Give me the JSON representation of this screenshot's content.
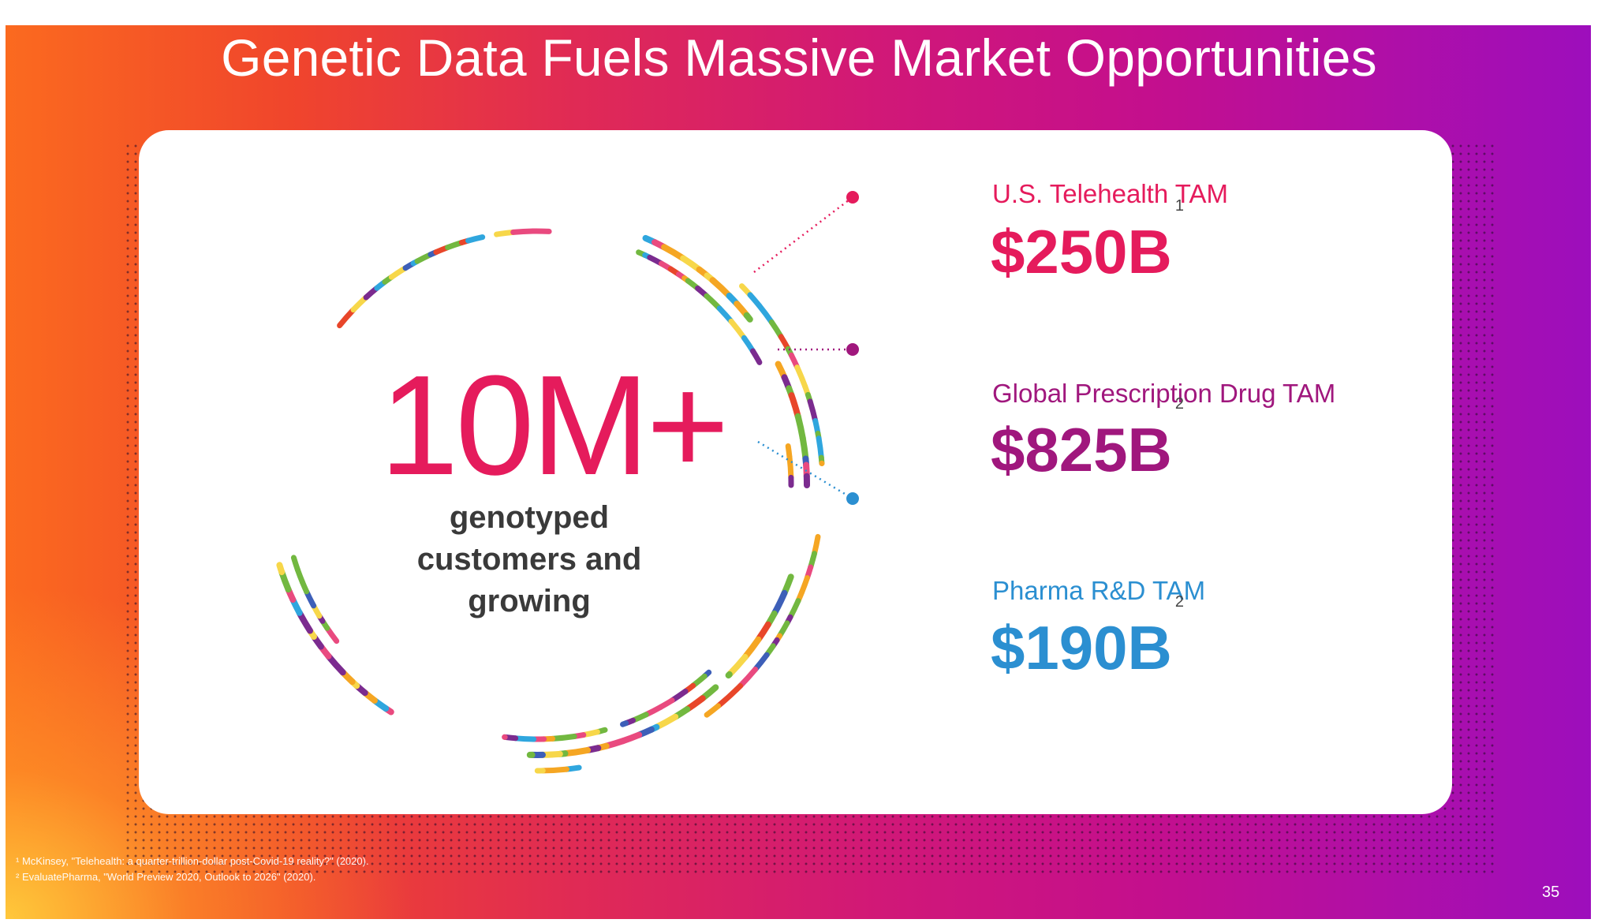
{
  "slide": {
    "title": "Genetic Data Fuels Massive Market Opportunities",
    "page_number": "35"
  },
  "hero": {
    "value": "10M+",
    "label": "genotyped customers and growing"
  },
  "tams": [
    {
      "label": "U.S. Telehealth TAM",
      "value": "$250B",
      "footnote_ref": "1",
      "color": "#e51b5c"
    },
    {
      "label": "Global Prescription Drug TAM",
      "value": "$825B",
      "footnote_ref": "2",
      "color": "#a0177d"
    },
    {
      "label": "Pharma R&D TAM",
      "value": "$190B",
      "footnote_ref": "2",
      "color": "#2b8fd1"
    }
  ],
  "footnotes": [
    "¹ McKinsey, \"Telehealth: a quarter-trillion-dollar post-Covid-19 reality?\" (2020).",
    "² EvaluatePharma, \"World Preview 2020, Outlook to 2026\" (2020)."
  ],
  "colors": {
    "gradient_left": "#fb6a1f",
    "gradient_mid": "#d11877",
    "gradient_right": "#9d0ebc",
    "ring_palette": [
      "#7b2b8f",
      "#e94a7f",
      "#2fa6de",
      "#72b840",
      "#f5a623",
      "#f7d74a",
      "#e8462a",
      "#3d5fb8"
    ]
  }
}
